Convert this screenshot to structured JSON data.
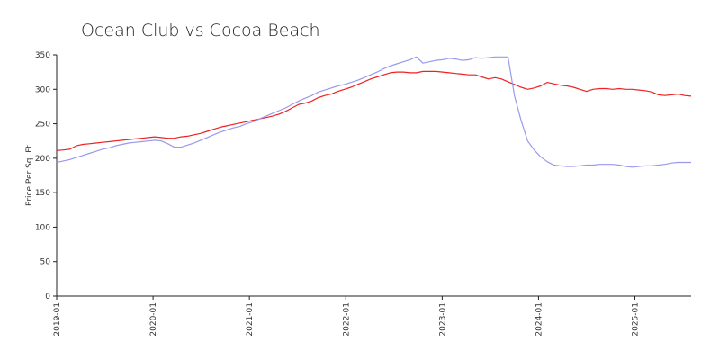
{
  "chart_data": {
    "type": "line",
    "title": "Ocean Club vs Cocoa Beach",
    "xlabel": "",
    "ylabel": "Price Per Sq. Ft",
    "ylim": [
      0,
      350
    ],
    "yticks": [
      "0",
      "50",
      "100",
      "150",
      "200",
      "250",
      "300",
      "350"
    ],
    "xticks": [
      "2019-01",
      "2020-01",
      "2021-01",
      "2022-01",
      "2023-01",
      "2024-01",
      "2025-01"
    ],
    "grid": false,
    "legend": "none",
    "x_start": "2019-01",
    "x_end": "2025-08",
    "series": [
      {
        "color": "#ee2222",
        "values": [
          211,
          212,
          213,
          218,
          220,
          221,
          222,
          223,
          224,
          225,
          226,
          227,
          228,
          229,
          230,
          231,
          230,
          229,
          229,
          231,
          232,
          234,
          236,
          239,
          242,
          245,
          247,
          249,
          251,
          253,
          255,
          257,
          259,
          261,
          264,
          268,
          273,
          278,
          280,
          283,
          288,
          291,
          293,
          297,
          300,
          303,
          307,
          311,
          315,
          318,
          321,
          324,
          325,
          325,
          324,
          324,
          326,
          326,
          326,
          325,
          324,
          323,
          322,
          321,
          321,
          318,
          315,
          317,
          315,
          311,
          307,
          303,
          300,
          302,
          305,
          310,
          308,
          306,
          305,
          303,
          300,
          297,
          300,
          301,
          301,
          300,
          301,
          300,
          300,
          299,
          298,
          296,
          292,
          291,
          292,
          293,
          291,
          290
        ]
      },
      {
        "color": "#9999ee",
        "values": [
          194,
          196,
          198,
          201,
          204,
          207,
          210,
          213,
          215,
          218,
          220,
          222,
          223,
          224,
          225,
          226,
          225,
          221,
          216,
          216,
          219,
          222,
          226,
          230,
          234,
          238,
          241,
          244,
          246,
          250,
          253,
          257,
          261,
          265,
          269,
          273,
          278,
          283,
          287,
          291,
          296,
          299,
          302,
          305,
          307,
          310,
          313,
          317,
          321,
          325,
          330,
          334,
          337,
          340,
          343,
          347,
          338,
          340,
          342,
          343,
          345,
          344,
          342,
          343,
          346,
          345,
          346,
          347,
          347,
          347,
          290,
          255,
          225,
          212,
          202,
          195,
          190,
          189,
          188,
          188,
          189,
          190,
          190,
          191,
          191,
          191,
          190,
          188,
          187,
          188,
          189,
          189,
          190,
          191,
          193,
          194,
          194,
          194
        ]
      }
    ]
  }
}
